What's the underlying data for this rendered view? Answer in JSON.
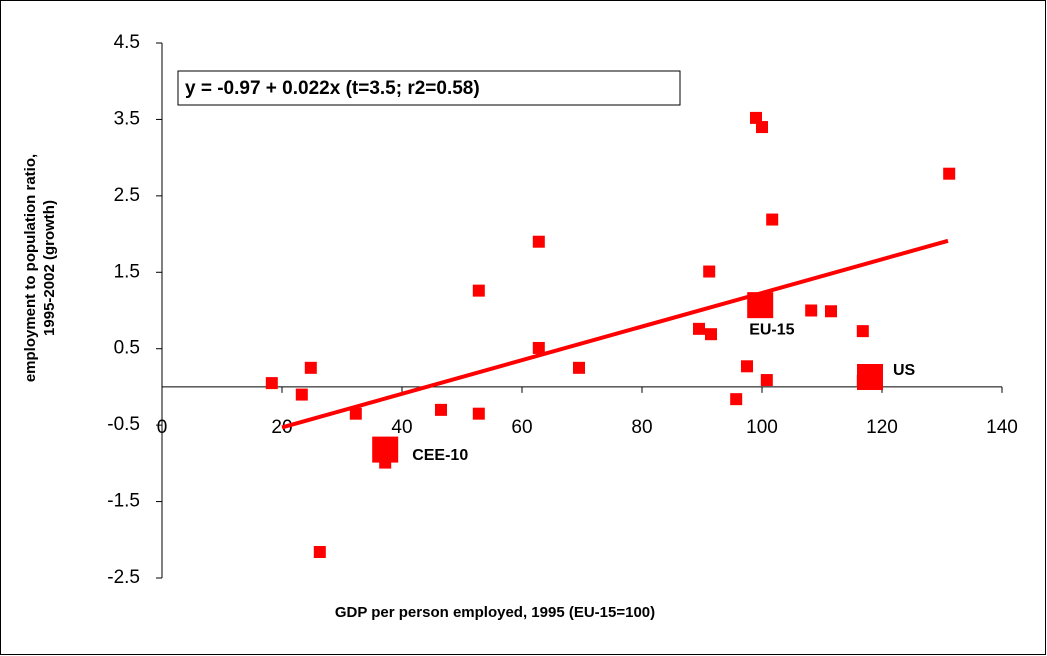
{
  "chart_data": {
    "type": "scatter",
    "x_label": "GDP per person employed, 1995 (EU-15=100)",
    "y_label": [
      "employment to population ratio,",
      "1995-2002 (growth)"
    ],
    "annotation": "y = -0.97 + 0.022x (t=3.5; r2=0.58)",
    "xlim": [
      0,
      140
    ],
    "xticks": [
      0,
      20,
      40,
      60,
      80,
      100,
      120,
      140
    ],
    "ylim": [
      -2.5,
      4.5
    ],
    "yticks": [
      -2.5,
      -1.5,
      -0.5,
      0.5,
      1.5,
      2.5,
      3.5,
      4.5
    ],
    "series": [
      {
        "color": "#ff0000",
        "x": [
          18.3,
          23.3,
          24.8,
          26.3,
          32.3,
          46.5,
          52.8,
          52.8,
          37.2,
          62.8,
          62.8,
          69.5,
          89.5,
          91.5,
          91.2,
          95.7,
          97.5,
          99,
          100,
          101.7,
          100.8,
          108.2,
          111.5,
          116.8,
          116.8,
          131.2
        ],
        "values": [
          0.05,
          -0.1,
          0.25,
          -2.16,
          -0.35,
          -0.3,
          -0.35,
          1.26,
          -0.99,
          1.9,
          0.51,
          0.25,
          0.76,
          0.69,
          1.51,
          -0.16,
          0.27,
          3.52,
          3.4,
          2.19,
          0.09,
          1.0,
          0.99,
          0.73,
          0.08,
          2.79
        ]
      },
      {
        "color": "#ff0000",
        "x": [
          37.2,
          99.7,
          118
        ],
        "values": [
          -0.82,
          1.07,
          0.13
        ],
        "labels": [
          "CEE-10",
          "EU-15",
          "US"
        ]
      }
    ],
    "trendline": {
      "color": "#ff0000",
      "intercept": -0.97,
      "slope": 0.022,
      "x_from": 20,
      "x_to": 131
    }
  }
}
